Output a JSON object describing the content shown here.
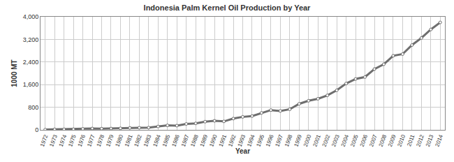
{
  "chart_data": {
    "type": "line",
    "title": "Indonesia Palm Kernel Oil Production by Year",
    "x_label": "Year",
    "y_label": "1000 MT",
    "categories": [
      "1972",
      "1973",
      "1974",
      "1975",
      "1976",
      "1977",
      "1978",
      "1979",
      "1980",
      "1981",
      "1982",
      "1983",
      "1984",
      "1985",
      "1986",
      "1987",
      "1988",
      "1989",
      "1990",
      "1991",
      "1992",
      "1993",
      "1994",
      "1995",
      "1996",
      "1997",
      "1998",
      "1999",
      "2000",
      "2001",
      "2002",
      "2003",
      "2004",
      "2005",
      "2006",
      "2007",
      "2008",
      "2009",
      "2010",
      "2011",
      "2012",
      "2013",
      "2014"
    ],
    "values": [
      10,
      20,
      22,
      25,
      35,
      50,
      45,
      48,
      55,
      70,
      75,
      80,
      120,
      160,
      150,
      210,
      230,
      290,
      320,
      300,
      400,
      460,
      490,
      600,
      700,
      670,
      730,
      920,
      1030,
      1100,
      1220,
      1400,
      1640,
      1800,
      1870,
      2150,
      2320,
      2620,
      2680,
      3000,
      3250,
      3550,
      3800
    ],
    "color": "#6e6e6e",
    "marker": "circle",
    "ylim": [
      0,
      4000
    ],
    "yticks": [
      0,
      800,
      {
        "value": 1600,
        "label": "1,600"
      },
      {
        "value": 2400,
        "label": "2,400"
      },
      {
        "value": 3200,
        "label": "3,200"
      },
      {
        "value": 4000,
        "label": "4,000"
      }
    ],
    "grid": true
  }
}
